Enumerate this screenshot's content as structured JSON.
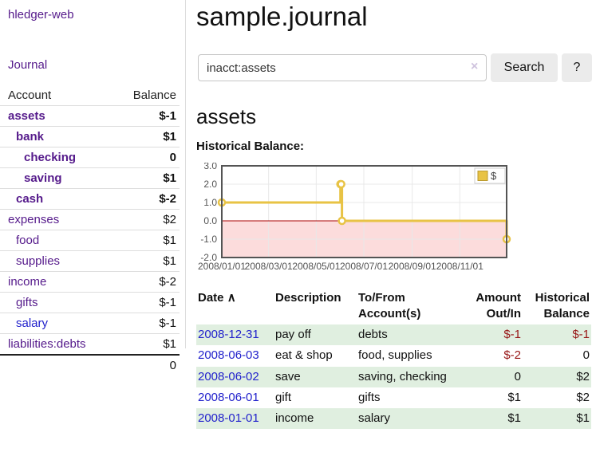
{
  "sidebar": {
    "brand": "hledger-web",
    "journal_link": "Journal",
    "table": {
      "account_header": "Account",
      "balance_header": "Balance",
      "rows": [
        {
          "name": "assets",
          "depth": 1,
          "bold": true,
          "balance": "$-1",
          "balance_style": "neg"
        },
        {
          "name": "bank",
          "depth": 2,
          "bold": true,
          "balance": "$1",
          "balance_style": "pos"
        },
        {
          "name": "checking",
          "depth": 3,
          "bold": true,
          "balance": "0",
          "balance_style": "pos"
        },
        {
          "name": "saving",
          "depth": 3,
          "bold": true,
          "balance": "$1",
          "balance_style": "pos"
        },
        {
          "name": "cash",
          "depth": 2,
          "bold": true,
          "balance": "$-2",
          "balance_style": "neg"
        },
        {
          "name": "expenses",
          "depth": 1,
          "bold": false,
          "balance": "$2",
          "balance_style": "pos"
        },
        {
          "name": "food",
          "depth": 2,
          "bold": false,
          "balance": "$1",
          "balance_style": "pos"
        },
        {
          "name": "supplies",
          "depth": 2,
          "bold": false,
          "balance": "$1",
          "balance_style": "pos"
        },
        {
          "name": "income",
          "depth": 1,
          "bold": false,
          "balance": "$-2",
          "balance_style": "neg-muted"
        },
        {
          "name": "gifts",
          "depth": 2,
          "bold": false,
          "balance": "$-1",
          "balance_style": "neg-muted"
        },
        {
          "name": "salary",
          "depth": 2,
          "bold": false,
          "balance": "$-1",
          "balance_style": "neg-muted",
          "link_color": "blue"
        },
        {
          "name": "liabilities:debts",
          "depth": 1,
          "bold": false,
          "balance": "$1",
          "balance_style": "pos"
        }
      ],
      "total": "0"
    }
  },
  "main": {
    "title": "sample.journal",
    "search": {
      "value": "inacct:assets",
      "clear_icon": "×",
      "button_label": "Search",
      "help_label": "?"
    },
    "account_heading": "assets",
    "chart_label": "Historical Balance:"
  },
  "chart_data": {
    "type": "line",
    "style": "step",
    "series_label": "$",
    "points": [
      {
        "date": "2008-01-01",
        "value": 1
      },
      {
        "date": "2008-06-01",
        "value": 2
      },
      {
        "date": "2008-06-02",
        "value": 2
      },
      {
        "date": "2008-06-03",
        "value": 0
      },
      {
        "date": "2008-12-31",
        "value": -1
      }
    ],
    "xrange": [
      "2008-01-01",
      "2008-12-31"
    ],
    "ylim": [
      -2,
      3
    ],
    "yticks": [
      3.0,
      2.0,
      1.0,
      0.0,
      -1.0,
      -2.0
    ],
    "xticks": [
      {
        "date": "2008-01-01",
        "label": "2008/01/01"
      },
      {
        "date": "2008-03-01",
        "label": "2008/03/01"
      },
      {
        "date": "2008-05-01",
        "label": "2008/05/01"
      },
      {
        "date": "2008-07-01",
        "label": "2008/07/01"
      },
      {
        "date": "2008-09-01",
        "label": "2008/09/01"
      },
      {
        "date": "2008-11-01",
        "label": "2008/11/01"
      }
    ],
    "grid": true,
    "legend_position": "top-right",
    "colors": {
      "line": "#e8c345",
      "marker_fill": "#ffffff",
      "negative_fill": "#fcdcdc",
      "zero_line": "#aa0000",
      "grid": "#e8e8e8",
      "border": "#545454"
    }
  },
  "register": {
    "headers": {
      "date": "Date",
      "sort_caret": "∧",
      "description": "Description",
      "accounts": "To/From Account(s)",
      "amount": "Amount Out/In",
      "balance": "Historical Balance"
    },
    "rows": [
      {
        "date": "2008-12-31",
        "description": "pay off",
        "accounts": "debts",
        "amount": "$-1",
        "amount_style": "neg",
        "balance": "$-1",
        "balance_style": "neg"
      },
      {
        "date": "2008-06-03",
        "description": "eat & shop",
        "accounts": "food, supplies",
        "amount": "$-2",
        "amount_style": "neg",
        "balance": "0",
        "balance_style": "pos"
      },
      {
        "date": "2008-06-02",
        "description": "save",
        "accounts": "saving, checking",
        "amount": "0",
        "amount_style": "pos",
        "balance": "$2",
        "balance_style": "pos"
      },
      {
        "date": "2008-06-01",
        "description": "gift",
        "accounts": "gifts",
        "amount": "$1",
        "amount_style": "pos",
        "balance": "$2",
        "balance_style": "pos"
      },
      {
        "date": "2008-01-01",
        "description": "income",
        "accounts": "salary",
        "amount": "$1",
        "amount_style": "pos",
        "balance": "$1",
        "balance_style": "pos"
      }
    ]
  },
  "colors": {
    "accent_purple": "#551a8b",
    "link_blue": "#2222cc",
    "negative": "#971616",
    "negative_muted": "#bf8080",
    "row_green": "#e0efe0"
  }
}
